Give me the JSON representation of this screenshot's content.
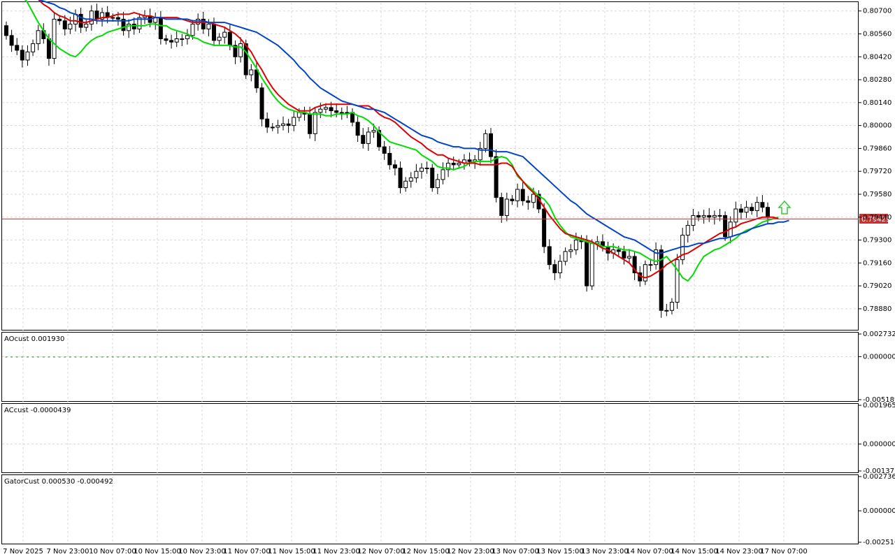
{
  "colors": {
    "background": "#ffffff",
    "grid": "#d8d8d8",
    "bull_candle": "#ffffff",
    "bear_candle": "#000000",
    "ma_fast": "#00dd00",
    "ma_mid": "#e00000",
    "ma_slow": "#0044cc",
    "price_line": "#c83232",
    "price_tag_bg": "#c83232",
    "ao_up": "#1a8a1a",
    "ao_down": "#e02020",
    "fractal": "#aaaaaa",
    "arrow_up": "#33cc33"
  },
  "price_line_label": "0.79429",
  "panels": {
    "main": {
      "y_ticks": [
        "0.80700",
        "0.80560",
        "0.80420",
        "0.80280",
        "0.80140",
        "0.80000",
        "0.79860",
        "0.79720",
        "0.79580",
        "0.79440",
        "0.79300",
        "0.79160",
        "0.79020",
        "0.78880"
      ]
    },
    "ao": {
      "label": "AOcust 0.001930",
      "y_ticks": [
        "0.002732",
        "0.000000",
        "-0.005189"
      ]
    },
    "ac": {
      "label": "ACcust -0.0000439",
      "y_ticks": [
        "0.0019657",
        "0.0000000",
        "-0.0013711"
      ]
    },
    "gator": {
      "label": "GatorCust 0.000530 -0.000492",
      "y_ticks": [
        "0.002736",
        "0.000000",
        "-0.002510"
      ]
    }
  },
  "x_labels": [
    "7 Nov 2025",
    "7 Nov 23:00",
    "10 Nov 07:00",
    "10 Nov 15:00",
    "10 Nov 23:00",
    "11 Nov 07:00",
    "11 Nov 15:00",
    "11 Nov 23:00",
    "12 Nov 07:00",
    "12 Nov 15:00",
    "12 Nov 23:00",
    "13 Nov 07:00",
    "13 Nov 15:00",
    "13 Nov 23:00",
    "14 Nov 07:00",
    "14 Nov 15:00",
    "14 Nov 23:00",
    "17 Nov 07:00"
  ],
  "chart_data": [
    {
      "type": "candlestick",
      "title": "",
      "ylim": [
        0.7876,
        0.8075
      ],
      "current_price": 0.79429,
      "close": [
        0.8055,
        0.8049,
        0.8046,
        0.804,
        0.8045,
        0.805,
        0.8058,
        0.8053,
        0.8041,
        0.8065,
        0.8064,
        0.8059,
        0.8062,
        0.8068,
        0.806,
        0.8062,
        0.807,
        0.8065,
        0.8069,
        0.8066,
        0.8066,
        0.8065,
        0.8058,
        0.8062,
        0.8059,
        0.8066,
        0.8067,
        0.8063,
        0.8066,
        0.8053,
        0.8052,
        0.8051,
        0.8053,
        0.8053,
        0.8055,
        0.8062,
        0.8065,
        0.8059,
        0.8062,
        0.8052,
        0.8054,
        0.8057,
        0.8049,
        0.8042,
        0.805,
        0.8031,
        0.8034,
        0.8023,
        0.8004,
        0.7999,
        0.7999,
        0.8,
        0.8001,
        0.8,
        0.8005,
        0.8008,
        0.8007,
        0.7995,
        0.8008,
        0.801,
        0.8011,
        0.8009,
        0.8008,
        0.8008,
        0.8008,
        0.8002,
        0.7994,
        0.7989,
        0.7996,
        0.7997,
        0.7987,
        0.7983,
        0.7976,
        0.7974,
        0.7962,
        0.7966,
        0.7968,
        0.7972,
        0.7974,
        0.7974,
        0.7962,
        0.7967,
        0.7973,
        0.7977,
        0.7976,
        0.7977,
        0.7979,
        0.7978,
        0.7979,
        0.7986,
        0.7995,
        0.7981,
        0.7956,
        0.7945,
        0.7955,
        0.7954,
        0.7961,
        0.7954,
        0.7953,
        0.7958,
        0.7949,
        0.7926,
        0.7915,
        0.791,
        0.7917,
        0.7923,
        0.7924,
        0.793,
        0.7929,
        0.7902,
        0.7928,
        0.7929,
        0.7926,
        0.7922,
        0.7924,
        0.7923,
        0.7919,
        0.792,
        0.791,
        0.7905,
        0.7915,
        0.7915,
        0.7924,
        0.7887,
        0.7887,
        0.7892,
        0.7918,
        0.7933,
        0.7939,
        0.7945,
        0.7944,
        0.7945,
        0.7944,
        0.7945,
        0.7945,
        0.7932,
        0.7941,
        0.7949,
        0.7947,
        0.795,
        0.7948,
        0.7953,
        0.795,
        0.7944
      ],
      "series": [
        {
          "name": "",
          "values": [
            0.8082,
            0.8079,
            0.8075,
            0.8069,
            0.8063,
            0.8058,
            0.8053,
            0.805,
            0.8047,
            0.8045,
            0.8043,
            0.8042,
            0.8045,
            0.8049,
            0.8052,
            0.8054,
            0.8055,
            0.8057,
            0.8058,
            0.8059,
            0.806,
            0.8061,
            0.8061,
            0.8061,
            0.8061,
            0.8062,
            0.8062,
            0.8061,
            0.8061,
            0.8059,
            0.8058,
            0.8057,
            0.8056,
            0.8054,
            0.8053,
            0.8051,
            0.805,
            0.8049,
            0.8049,
            0.8049,
            0.8049,
            0.8048,
            0.8048,
            0.8045,
            0.804,
            0.8035,
            0.8029,
            0.8024,
            0.8019,
            0.8015,
            0.8012,
            0.801,
            0.8009,
            0.8008,
            0.8008,
            0.8007,
            0.8007,
            0.8007,
            0.8006,
            0.8006,
            0.8007,
            0.8007,
            0.8007,
            0.8008,
            0.8006,
            0.8005,
            0.8003,
            0.8,
            0.7996,
            0.7993,
            0.799,
            0.7989,
            0.7988,
            0.7987,
            0.7986,
            0.7985,
            0.7982,
            0.798,
            0.7978,
            0.7975,
            0.7974,
            0.7974,
            0.7973,
            0.7974,
            0.7975,
            0.7977,
            0.7978,
            0.7978,
            0.7978,
            0.7978,
            0.798,
            0.7981,
            0.798,
            0.7976,
            0.7969,
            0.7966,
            0.7963,
            0.796,
            0.7957,
            0.7955,
            0.7951,
            0.7944,
            0.7939,
            0.7935,
            0.7932,
            0.7931,
            0.793,
            0.7929,
            0.7928,
            0.7928,
            0.7926,
            0.7926,
            0.7926,
            0.7925,
            0.7924,
            0.7924,
            0.7923,
            0.7922,
            0.792,
            0.7918,
            0.7917,
            0.7918,
            0.792,
            0.7916,
            0.7912,
            0.7907,
            0.7905,
            0.7909,
            0.7915,
            0.792,
            0.7922,
            0.7924,
            0.7925,
            0.7927,
            0.7929,
            0.7931,
            0.7934,
            0.7936,
            0.7937,
            0.7939,
            0.7941,
            0.7942,
            0.7943,
            0.7944
          ]
        },
        {
          "name": "",
          "values": [
            0.8081,
            0.8079,
            0.8077,
            0.8074,
            0.8072,
            0.8069,
            0.8067,
            0.8066,
            0.8064,
            0.8064,
            0.8063,
            0.8063,
            0.8064,
            0.8065,
            0.8066,
            0.8066,
            0.8067,
            0.8068,
            0.8068,
            0.8068,
            0.8069,
            0.8068,
            0.8067,
            0.8067,
            0.8066,
            0.8066,
            0.8066,
            0.8066,
            0.8066,
            0.8065,
            0.8064,
            0.8063,
            0.8063,
            0.8063,
            0.8063,
            0.8062,
            0.8061,
            0.806,
            0.8058,
            0.8056,
            0.8053,
            0.8049,
            0.8045,
            0.8039,
            0.8034,
            0.8028,
            0.8023,
            0.8019,
            0.8016,
            0.8013,
            0.8011,
            0.8009,
            0.8009,
            0.8009,
            0.8011,
            0.8012,
            0.8013,
            0.8013,
            0.8013,
            0.8013,
            0.8013,
            0.8013,
            0.8012,
            0.8012,
            0.8012,
            0.801,
            0.8007,
            0.8005,
            0.8004,
            0.8002,
            0.7999,
            0.7996,
            0.7993,
            0.7991,
            0.7989,
            0.7986,
            0.7984,
            0.7982,
            0.7982,
            0.798,
            0.7979,
            0.7978,
            0.7977,
            0.7977,
            0.7977,
            0.7976,
            0.7976,
            0.7976,
            0.7976,
            0.7977,
            0.7977,
            0.7975,
            0.797,
            0.7966,
            0.7962,
            0.7959,
            0.7955,
            0.795,
            0.7945,
            0.7941,
            0.7937,
            0.7934,
            0.7933,
            0.7932,
            0.7931,
            0.793,
            0.7929,
            0.7927,
            0.7925,
            0.7924,
            0.7922,
            0.792,
            0.7918,
            0.7916,
            0.7912,
            0.7908,
            0.7907,
            0.7908,
            0.791,
            0.7912,
            0.7915,
            0.7917,
            0.7919,
            0.7921,
            0.7922,
            0.7924,
            0.7926,
            0.7928,
            0.793,
            0.7932,
            0.7934,
            0.7935,
            0.7937,
            0.7938,
            0.794,
            0.7941,
            0.7942,
            0.7943,
            0.7944,
            0.7944,
            0.7944,
            0.7943
          ]
        },
        {
          "name": "",
          "values": [
            0.8077,
            0.8076,
            0.8075,
            0.8074,
            0.8072,
            0.8071,
            0.8069,
            0.8068,
            0.8066,
            0.8065,
            0.8065,
            0.8064,
            0.8064,
            0.8064,
            0.8064,
            0.8064,
            0.8064,
            0.8064,
            0.8065,
            0.8065,
            0.8065,
            0.8065,
            0.8066,
            0.8066,
            0.8065,
            0.8065,
            0.8065,
            0.8065,
            0.8065,
            0.8064,
            0.8064,
            0.8064,
            0.8063,
            0.8063,
            0.8063,
            0.8063,
            0.8062,
            0.8061,
            0.806,
            0.8059,
            0.8058,
            0.8057,
            0.8055,
            0.8053,
            0.8051,
            0.8049,
            0.8046,
            0.8043,
            0.804,
            0.8036,
            0.8033,
            0.8029,
            0.8026,
            0.8023,
            0.8021,
            0.8019,
            0.8017,
            0.8015,
            0.8014,
            0.8013,
            0.8012,
            0.8011,
            0.801,
            0.801,
            0.8009,
            0.8008,
            0.8006,
            0.8004,
            0.8002,
            0.8,
            0.7998,
            0.7996,
            0.7994,
            0.7993,
            0.7992,
            0.799,
            0.7989,
            0.7988,
            0.7987,
            0.7987,
            0.7986,
            0.7986,
            0.7986,
            0.7985,
            0.7985,
            0.7985,
            0.7984,
            0.7984,
            0.7984,
            0.7983,
            0.7982,
            0.7981,
            0.7978,
            0.7975,
            0.7972,
            0.7969,
            0.7966,
            0.7963,
            0.796,
            0.7957,
            0.7954,
            0.7952,
            0.7949,
            0.7946,
            0.7944,
            0.7942,
            0.794,
            0.7938,
            0.7936,
            0.7934,
            0.7932,
            0.7931,
            0.793,
            0.7928,
            0.7926,
            0.7924,
            0.7922,
            0.7922,
            0.7923,
            0.7924,
            0.7925,
            0.7926,
            0.7926,
            0.7927,
            0.7928,
            0.7928,
            0.7929,
            0.793,
            0.7931,
            0.7931,
            0.7932,
            0.7933,
            0.7934,
            0.7935,
            0.7937,
            0.7938,
            0.7939,
            0.794,
            0.794,
            0.7941,
            0.7941,
            0.7942
          ]
        }
      ]
    },
    {
      "type": "bar",
      "title": "AOcust 0.001930",
      "ylim": [
        -0.005189,
        0.002732
      ],
      "values": [
        0.0,
        0.0,
        0.0,
        0.0,
        0.0,
        0.0,
        0.0,
        0.0,
        0.0,
        0.0,
        0.0,
        0.0,
        0.0,
        0.0,
        0.0,
        0.0,
        0.0,
        0.0,
        0.0,
        0.0,
        0.0,
        0.0,
        0.0,
        0.0,
        0.0,
        0.0,
        0.0,
        0.0,
        0.0,
        0.0,
        0.0,
        0.0,
        0.0,
        0.0,
        0.0,
        0.0,
        0.0,
        0.0,
        0.0,
        0.0,
        0.0,
        0.0,
        0.0,
        0.0,
        0.0,
        0.0,
        0.0,
        0.0,
        0.0,
        0.0,
        0.0,
        0.0,
        0.0,
        0.0,
        0.0,
        0.0,
        0.0,
        0.0,
        0.0,
        0.0,
        0.0,
        0.0,
        0.0,
        0.0,
        0.0,
        0.0,
        0.0,
        0.0,
        0.0,
        0.0,
        0.0,
        0.0,
        0.0,
        0.0,
        0.0,
        0.0,
        0.0,
        0.0,
        0.0,
        0.0,
        0.0,
        0.0,
        0.0,
        0.0,
        0.0,
        0.0,
        0.0,
        0.0,
        0.0,
        0.0,
        0.0,
        0.0,
        0.0,
        0.0,
        0.0,
        0.0,
        0.0,
        0.0,
        0.0,
        0.0,
        0.0,
        0.0,
        0.0,
        0.0,
        0.0,
        0.0,
        0.0,
        0.0,
        0.0,
        0.0,
        0.0,
        0.0,
        0.0,
        0.0,
        0.0,
        0.0,
        0.0,
        0.0,
        0.0,
        0.0,
        0.0,
        0.0,
        0.0,
        0.0,
        0.0,
        0.0,
        0.0,
        0.0,
        0.0,
        0.0,
        0.0,
        0.0,
        0.0,
        0.0,
        0.0,
        0.0,
        0.0,
        0.0,
        0.0,
        0.0,
        0.0,
        0.0,
        0.0,
        0.0
      ]
    },
    {
      "type": "bar",
      "title": "ACcust -0.0000439",
      "ylim": [
        -0.0013711,
        0.0019657
      ],
      "values": []
    },
    {
      "type": "bar",
      "title": "GatorCust 0.000530 -0.000492",
      "ylim": [
        -0.00251,
        0.002736
      ],
      "upper_values": [],
      "lower_values": []
    }
  ]
}
